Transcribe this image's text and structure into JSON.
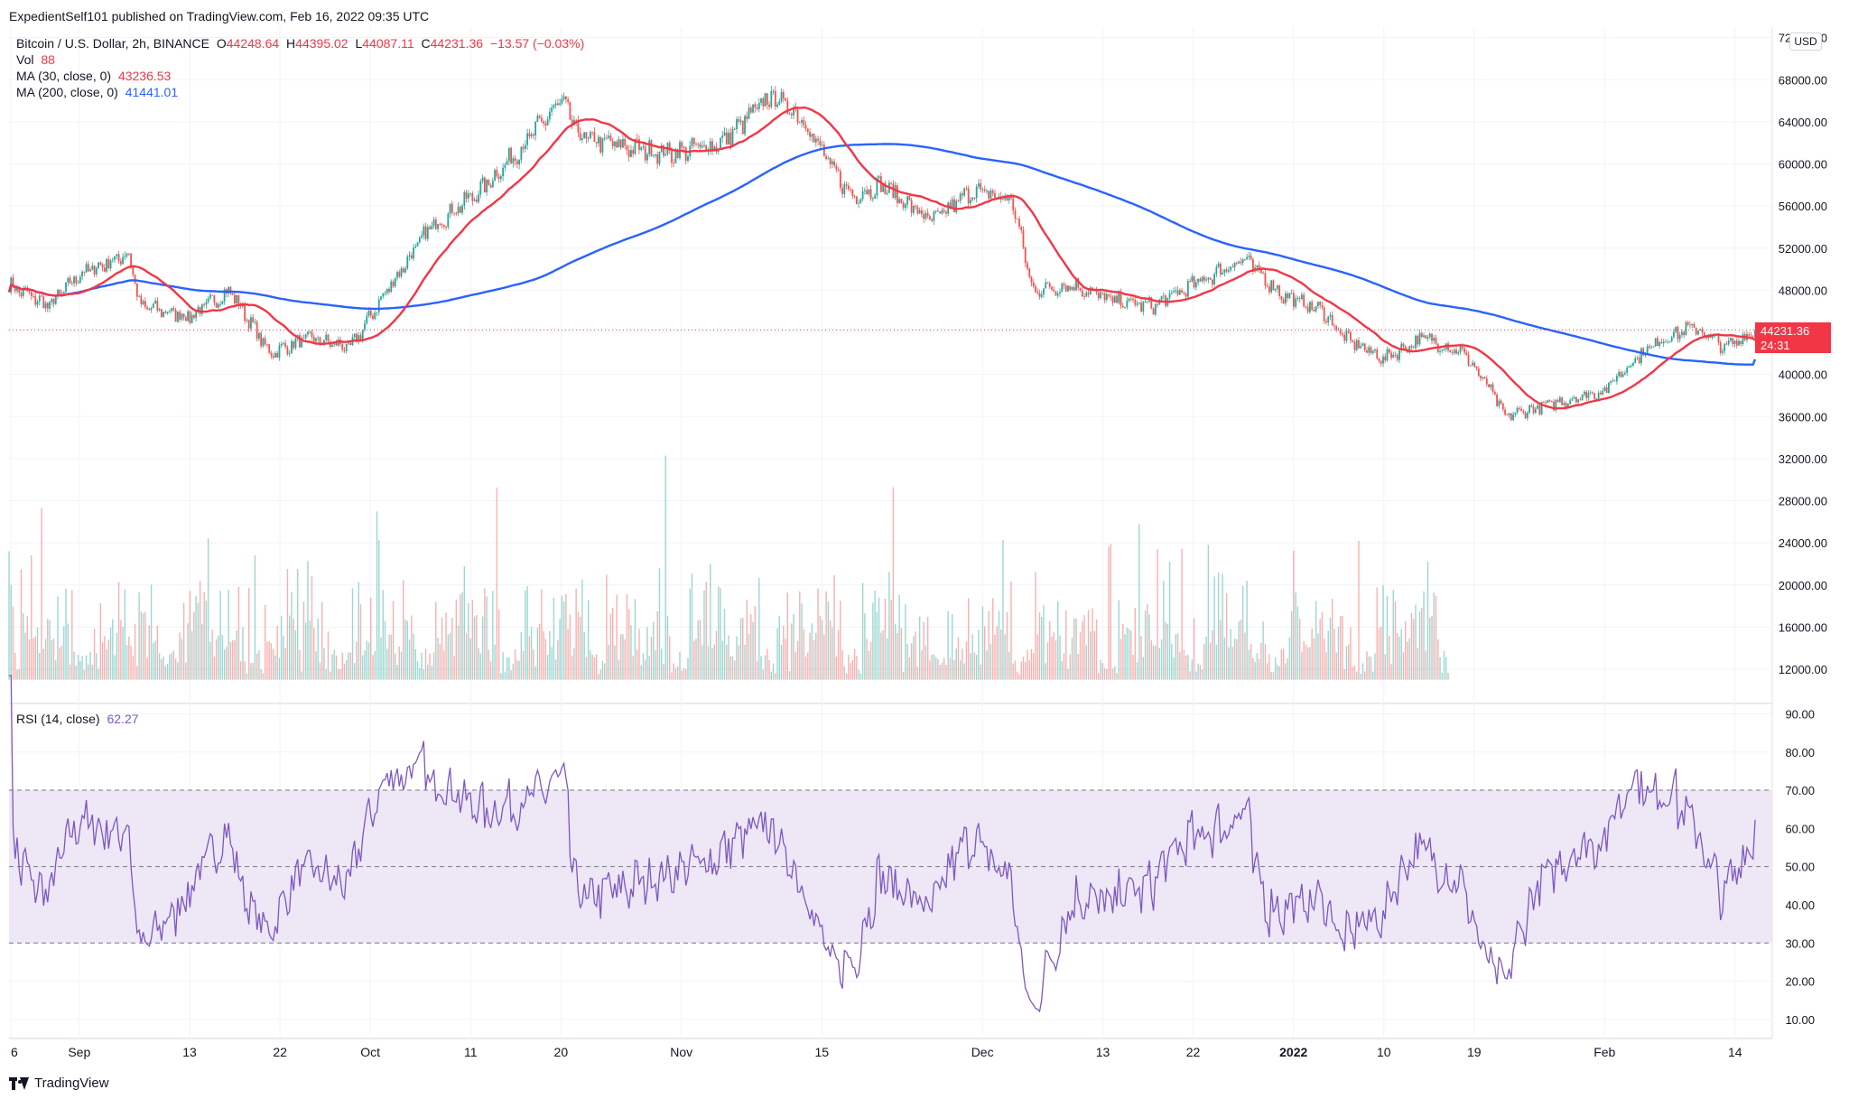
{
  "publish_info": "ExpedientSelf101 published on TradingView.com, Feb 16, 2022 09:35 UTC",
  "legend": {
    "symbol": "Bitcoin / U.S. Dollar, 2h, BINANCE",
    "o_label": "O",
    "o_value": "44248.64",
    "h_label": "H",
    "h_value": "44395.02",
    "l_label": "L",
    "l_value": "44087.11",
    "c_label": "C",
    "c_value": "44231.36",
    "change": "−13.57 (−0.03%)",
    "vol_label": "Vol",
    "vol_value": "88",
    "ma30_label": "MA (30, close, 0)",
    "ma30_value": "43236.53",
    "ma200_label": "MA (200, close, 0)",
    "ma200_value": "41441.01",
    "rsi_label": "RSI (14, close)",
    "rsi_value": "62.27"
  },
  "currency_badge": "USD",
  "last_price_tag": {
    "price": "44231.36",
    "countdown": "24:31"
  },
  "footer_brand": "TradingView",
  "colors": {
    "up": "#26a69a",
    "down": "#ef5350",
    "ma30": "#f23645",
    "ma200": "#2962ff",
    "rsi": "#7e57c2",
    "rsi_band": "#ede7f6"
  },
  "chart_data": [
    {
      "type": "candlestick",
      "title": "Bitcoin / U.S. Dollar, 2h, BINANCE",
      "x_ticks": [
        "6",
        "Sep",
        "13",
        "22",
        "Oct",
        "11",
        "20",
        "Nov",
        "15",
        "Dec",
        "13",
        "22",
        "2022",
        "10",
        "19",
        "Feb",
        "14"
      ],
      "y_ticks": [
        "72000.00",
        "68000.00",
        "64000.00",
        "60000.00",
        "56000.00",
        "52000.00",
        "48000.00",
        "44000.00",
        "40000.00",
        "36000.00",
        "32000.00",
        "28000.00",
        "24000.00",
        "20000.00",
        "16000.00",
        "12000.00"
      ],
      "ylim": [
        9000,
        73000
      ],
      "price_anchors": {
        "x": [
          "Aug 26",
          "Aug 30",
          "Sep 2",
          "Sep 7",
          "Sep 8",
          "Sep 13",
          "Sep 17",
          "Sep 21",
          "Sep 25",
          "Sep 29",
          "Oct 3",
          "Oct 7",
          "Oct 12",
          "Oct 16",
          "Oct 20",
          "Oct 22",
          "Oct 27",
          "Oct 31",
          "Nov 5",
          "Nov 10",
          "Nov 13",
          "Nov 16",
          "Nov 18",
          "Nov 21",
          "Nov 26",
          "Nov 30",
          "Dec 4",
          "Dec 6",
          "Dec 10",
          "Dec 14",
          "Dec 18",
          "Dec 23",
          "Dec 27",
          "Dec 31",
          "Jan 4",
          "Jan 6",
          "Jan 10",
          "Jan 14",
          "Jan 18",
          "Jan 21",
          "Jan 22",
          "Jan 24",
          "Jan 28",
          "Feb 1",
          "Feb 4",
          "Feb 7",
          "Feb 10",
          "Feb 13",
          "Feb 16"
        ],
        "y": [
          48500,
          46500,
          49500,
          51500,
          46500,
          45500,
          48000,
          42000,
          43500,
          42500,
          48500,
          54000,
          57500,
          61500,
          66000,
          62500,
          61500,
          61000,
          62000,
          66500,
          64500,
          59500,
          57000,
          58000,
          54500,
          57500,
          56500,
          48000,
          48500,
          47000,
          46500,
          49000,
          51000,
          47500,
          46000,
          43500,
          41500,
          43500,
          42000,
          38000,
          36000,
          36500,
          37500,
          38500,
          41500,
          43500,
          44500,
          42500,
          44231
        ]
      },
      "ma30_last": 43236.53,
      "ma200_last": 41441.01,
      "last_price": 44231.36
    },
    {
      "type": "line",
      "title": "RSI (14, close)",
      "y_ticks": [
        "90.00",
        "80.00",
        "70.00",
        "60.00",
        "50.00",
        "40.00",
        "30.00",
        "20.00",
        "10.00"
      ],
      "ylim": [
        5,
        92
      ],
      "bands": [
        30,
        50,
        70
      ],
      "last_value": 62.27
    }
  ]
}
